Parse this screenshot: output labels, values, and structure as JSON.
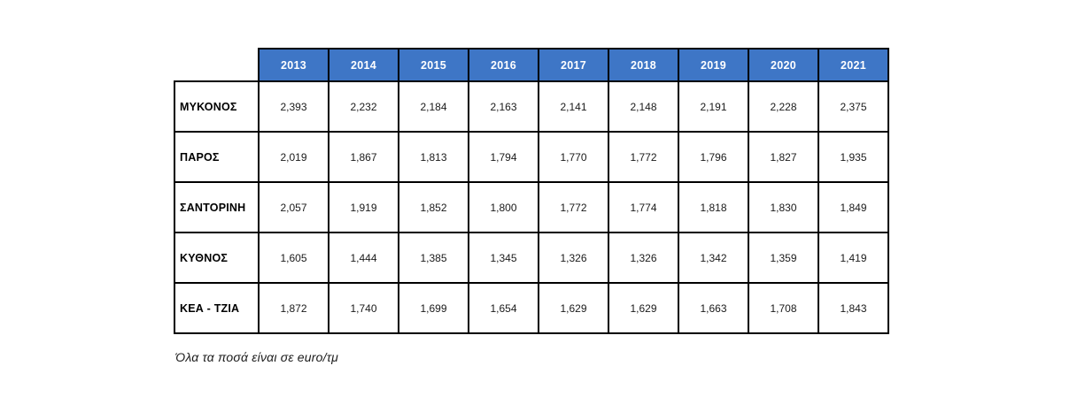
{
  "table": {
    "columns": [
      "2013",
      "2014",
      "2015",
      "2016",
      "2017",
      "2018",
      "2019",
      "2020",
      "2021"
    ],
    "rows": [
      {
        "label": "ΜΥΚΟΝΟΣ",
        "values": [
          "2,393",
          "2,232",
          "2,184",
          "2,163",
          "2,141",
          "2,148",
          "2,191",
          "2,228",
          "2,375"
        ]
      },
      {
        "label": "ΠΑΡΟΣ",
        "values": [
          "2,019",
          "1,867",
          "1,813",
          "1,794",
          "1,770",
          "1,772",
          "1,796",
          "1,827",
          "1,935"
        ]
      },
      {
        "label": "ΣΑΝΤΟΡΙΝΗ",
        "values": [
          "2,057",
          "1,919",
          "1,852",
          "1,800",
          "1,772",
          "1,774",
          "1,818",
          "1,830",
          "1,849"
        ]
      },
      {
        "label": "ΚΥΘΝΟΣ",
        "values": [
          "1,605",
          "1,444",
          "1,385",
          "1,345",
          "1,326",
          "1,326",
          "1,342",
          "1,359",
          "1,419"
        ]
      },
      {
        "label": "ΚΕΑ - ΤΖΙΑ",
        "values": [
          "1,872",
          "1,740",
          "1,699",
          "1,654",
          "1,629",
          "1,629",
          "1,663",
          "1,708",
          "1,843"
        ]
      }
    ]
  },
  "footnote": "Όλα τα ποσά είναι σε euro/τμ",
  "colors": {
    "header_bg": "#3E76C6",
    "header_text": "#FFFFFF",
    "border": "#000000",
    "background": "#FFFFFF"
  },
  "chart_data": {
    "type": "table",
    "title": "",
    "categories": [
      "2013",
      "2014",
      "2015",
      "2016",
      "2017",
      "2018",
      "2019",
      "2020",
      "2021"
    ],
    "series": [
      {
        "name": "ΜΥΚΟΝΟΣ",
        "values": [
          2393,
          2232,
          2184,
          2163,
          2141,
          2148,
          2191,
          2228,
          2375
        ]
      },
      {
        "name": "ΠΑΡΟΣ",
        "values": [
          2019,
          1867,
          1813,
          1794,
          1770,
          1772,
          1796,
          1827,
          1935
        ]
      },
      {
        "name": "ΣΑΝΤΟΡΙΝΗ",
        "values": [
          2057,
          1919,
          1852,
          1800,
          1772,
          1774,
          1818,
          1830,
          1849
        ]
      },
      {
        "name": "ΚΥΘΝΟΣ",
        "values": [
          1605,
          1444,
          1385,
          1345,
          1326,
          1326,
          1342,
          1359,
          1419
        ]
      },
      {
        "name": "ΚΕΑ - ΤΖΙΑ",
        "values": [
          1872,
          1740,
          1699,
          1654,
          1629,
          1629,
          1663,
          1708,
          1843
        ]
      }
    ],
    "units": "euro/τμ",
    "annotation": "Όλα τα ποσά είναι σε euro/τμ"
  }
}
